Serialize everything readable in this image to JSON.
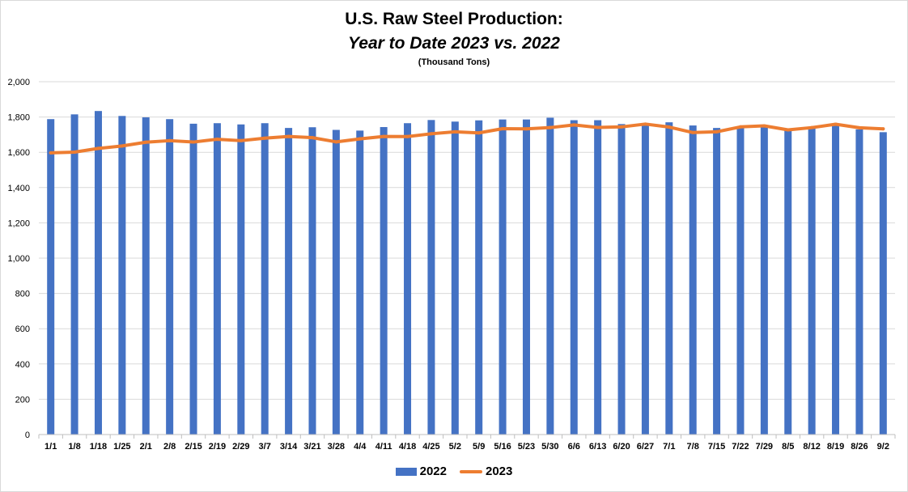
{
  "chart_data": {
    "type": "bar",
    "title": "U.S. Raw Steel Production:",
    "subtitle": "Year to Date 2023 vs. 2022",
    "note": "(Thousand Tons)",
    "ylim": [
      0,
      2000
    ],
    "y_ticks": [
      "0",
      "200",
      "400",
      "600",
      "800",
      "1,000",
      "1,200",
      "1,400",
      "1,600",
      "1,800",
      "2,000"
    ],
    "grid": true,
    "legend_position": "bottom",
    "categories": [
      "1/1",
      "1/8",
      "1/18",
      "1/25",
      "2/1",
      "2/8",
      "2/15",
      "2/19",
      "2/29",
      "3/7",
      "3/14",
      "3/21",
      "3/28",
      "4/4",
      "4/11",
      "4/18",
      "4/25",
      "5/2",
      "5/9",
      "5/16",
      "5/23",
      "5/30",
      "6/6",
      "6/13",
      "6/20",
      "6/27",
      "7/1",
      "7/8",
      "7/15",
      "7/22",
      "7/29",
      "8/5",
      "8/12",
      "8/19",
      "8/26",
      "9/2"
    ],
    "series": [
      {
        "name": "2022",
        "type": "bar",
        "color": "#4472c4",
        "values": [
          1788,
          1815,
          1834,
          1806,
          1798,
          1788,
          1762,
          1765,
          1758,
          1765,
          1738,
          1742,
          1727,
          1723,
          1743,
          1765,
          1783,
          1774,
          1781,
          1786,
          1786,
          1796,
          1782,
          1782,
          1760,
          1756,
          1770,
          1752,
          1738,
          1742,
          1746,
          1733,
          1735,
          1751,
          1730,
          1714
        ]
      },
      {
        "name": "2023",
        "type": "line",
        "color": "#ed7d31",
        "values": [
          1597,
          1601,
          1622,
          1636,
          1657,
          1666,
          1658,
          1674,
          1666,
          1680,
          1690,
          1683,
          1659,
          1676,
          1690,
          1689,
          1705,
          1716,
          1710,
          1734,
          1733,
          1740,
          1755,
          1741,
          1744,
          1760,
          1743,
          1712,
          1716,
          1744,
          1750,
          1727,
          1740,
          1759,
          1739,
          1733
        ]
      }
    ]
  }
}
